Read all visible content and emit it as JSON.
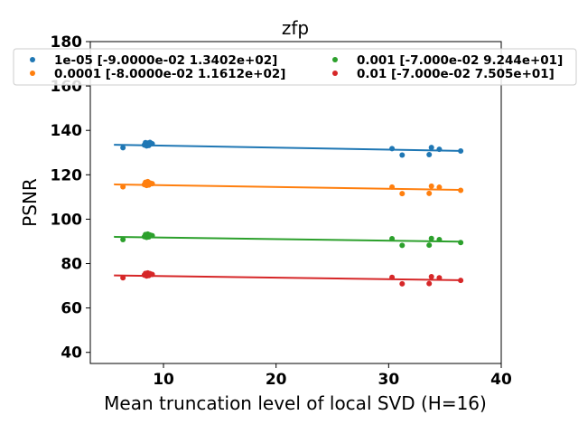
{
  "chart_data": {
    "type": "scatter",
    "title": "zfp",
    "xlabel": "Mean truncation level of local SVD (H=16)",
    "ylabel": "PSNR",
    "xlim": [
      3.5,
      40
    ],
    "ylim": [
      35,
      180
    ],
    "xticks": [
      10,
      20,
      30,
      40
    ],
    "yticks": [
      40,
      60,
      80,
      100,
      120,
      140,
      160,
      180
    ],
    "grid": false,
    "legend_position": "top",
    "series": [
      {
        "name": "1e-05 [-9.0000e-02  1.3402e+02]",
        "color": "#1f77b4",
        "slope": -0.09,
        "intercept": 134.02,
        "points": [
          [
            6.4,
            132.2
          ],
          [
            8.3,
            133.4
          ],
          [
            8.4,
            134.5
          ],
          [
            8.5,
            133.0
          ],
          [
            8.6,
            134.3
          ],
          [
            8.7,
            133.2
          ],
          [
            8.8,
            134.6
          ],
          [
            9.0,
            134.0
          ],
          [
            30.3,
            131.8
          ],
          [
            31.2,
            128.9
          ],
          [
            33.6,
            129.1
          ],
          [
            33.8,
            132.3
          ],
          [
            34.5,
            131.5
          ],
          [
            36.4,
            130.7
          ]
        ]
      },
      {
        "name": "0.0001 [-8.0000e-02  1.1612e+02]",
        "color": "#ff7f0e",
        "slope": -0.08,
        "intercept": 116.12,
        "points": [
          [
            6.4,
            114.6
          ],
          [
            8.3,
            115.6
          ],
          [
            8.4,
            116.6
          ],
          [
            8.5,
            115.2
          ],
          [
            8.6,
            116.9
          ],
          [
            8.7,
            115.4
          ],
          [
            8.8,
            116.3
          ],
          [
            9.0,
            116.0
          ],
          [
            30.3,
            114.5
          ],
          [
            31.2,
            111.5
          ],
          [
            33.6,
            111.6
          ],
          [
            33.8,
            114.9
          ],
          [
            34.5,
            114.4
          ],
          [
            36.4,
            113.0
          ]
        ]
      },
      {
        "name": "0.001 [-7.000e-02  9.244e+01]",
        "color": "#2ca02c",
        "slope": -0.07,
        "intercept": 92.44,
        "points": [
          [
            6.4,
            90.8
          ],
          [
            8.3,
            92.1
          ],
          [
            8.4,
            93.1
          ],
          [
            8.5,
            91.8
          ],
          [
            8.6,
            93.3
          ],
          [
            8.7,
            92.0
          ],
          [
            8.8,
            92.9
          ],
          [
            9.0,
            92.6
          ],
          [
            30.3,
            91.2
          ],
          [
            31.2,
            88.2
          ],
          [
            33.6,
            88.3
          ],
          [
            33.8,
            91.3
          ],
          [
            34.5,
            90.8
          ],
          [
            36.4,
            89.5
          ]
        ]
      },
      {
        "name": "0.01 [-7.000e-02  7.505e+01]",
        "color": "#d62728",
        "slope": -0.07,
        "intercept": 75.05,
        "points": [
          [
            6.4,
            73.6
          ],
          [
            8.3,
            74.8
          ],
          [
            8.4,
            75.6
          ],
          [
            8.5,
            74.4
          ],
          [
            8.6,
            75.8
          ],
          [
            8.7,
            74.6
          ],
          [
            8.8,
            75.5
          ],
          [
            9.0,
            75.1
          ],
          [
            30.3,
            73.8
          ],
          [
            31.2,
            70.9
          ],
          [
            33.6,
            71.0
          ],
          [
            33.8,
            74.1
          ],
          [
            34.5,
            73.6
          ],
          [
            36.4,
            72.4
          ]
        ]
      }
    ]
  }
}
